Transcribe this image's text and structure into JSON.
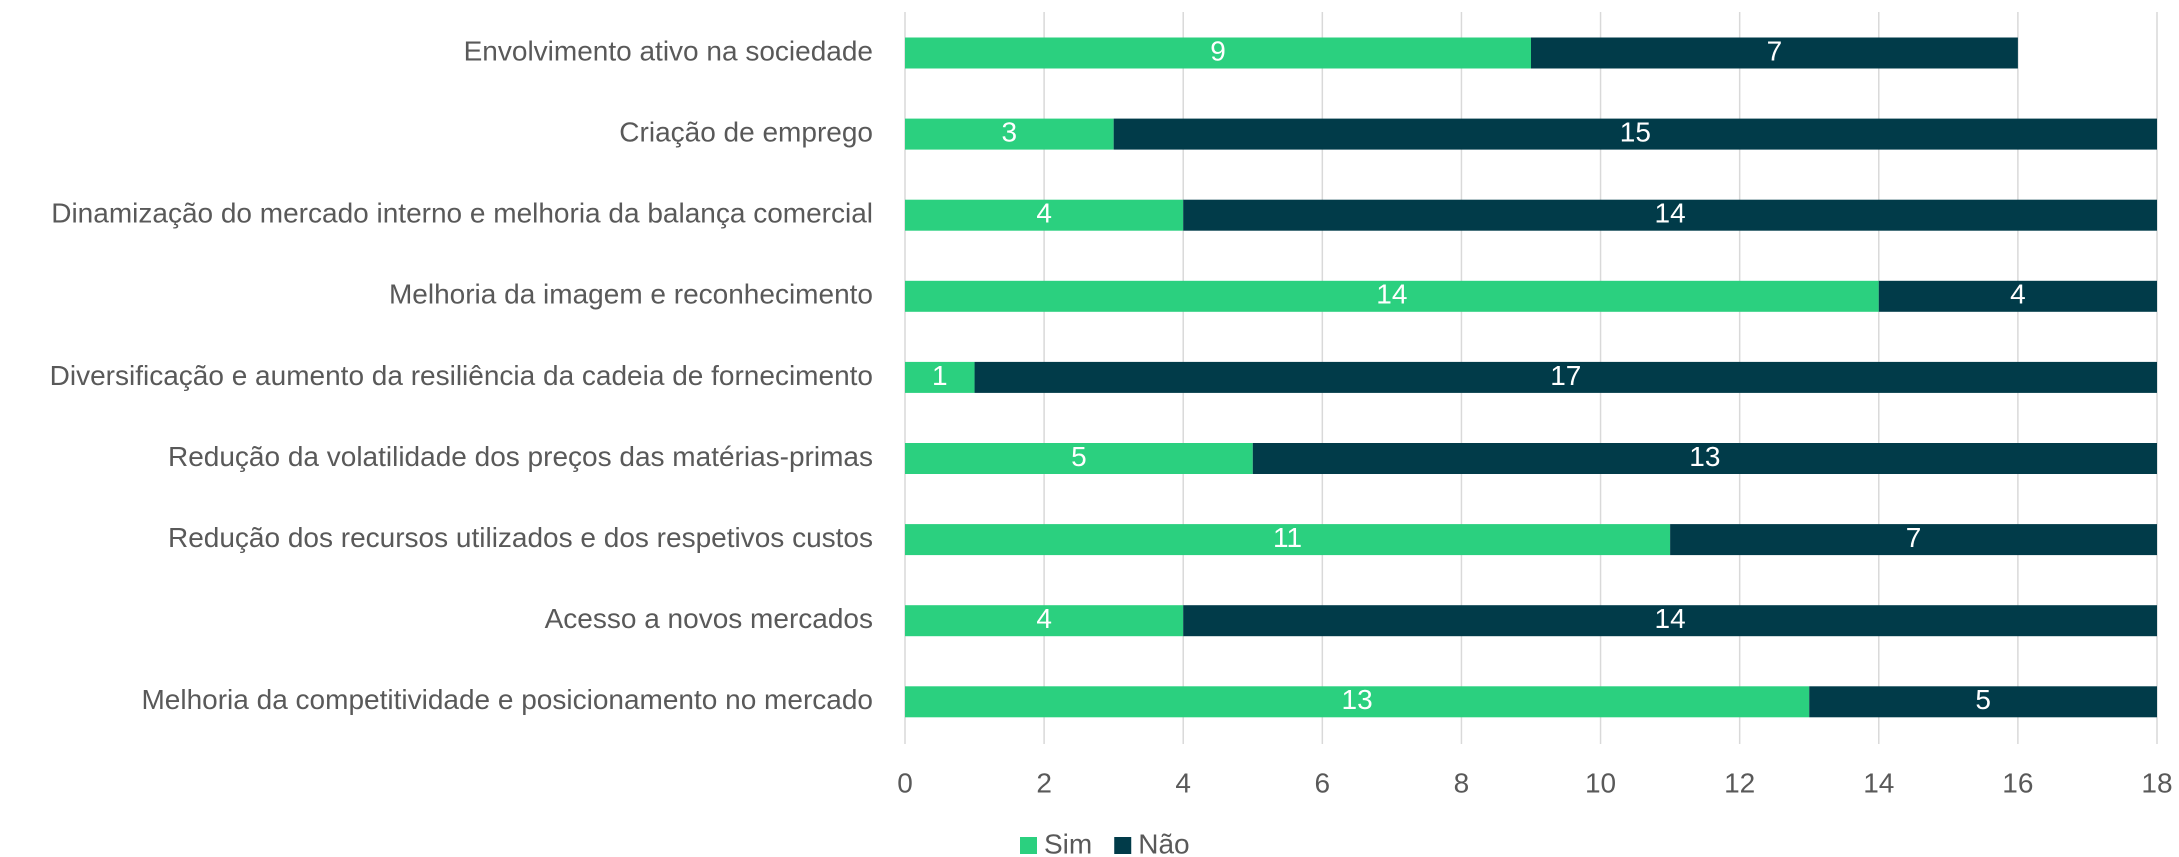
{
  "chart_data": {
    "type": "bar",
    "orientation": "horizontal",
    "stacked": true,
    "categories": [
      "Envolvimento ativo na sociedade",
      "Criação de emprego",
      "Dinamização do mercado interno e melhoria da balança comercial",
      "Melhoria da imagem e reconhecimento",
      "Diversificação e aumento da resiliência da cadeia de fornecimento",
      "Redução da volatilidade dos preços das matérias-primas",
      "Redução dos recursos utilizados e dos respetivos custos",
      "Acesso a novos mercados",
      "Melhoria da competitividade e posicionamento no mercado"
    ],
    "series": [
      {
        "name": "Sim",
        "color": "#2bd07f",
        "values": [
          9,
          3,
          4,
          14,
          1,
          5,
          11,
          4,
          13
        ]
      },
      {
        "name": "Não",
        "color": "#013b49",
        "values": [
          7,
          15,
          14,
          4,
          17,
          13,
          7,
          14,
          5
        ]
      }
    ],
    "xlim": [
      0,
      18
    ],
    "xticks": [
      0,
      2,
      4,
      6,
      8,
      10,
      12,
      14,
      16,
      18
    ],
    "grid": true,
    "legend": "bottom"
  }
}
